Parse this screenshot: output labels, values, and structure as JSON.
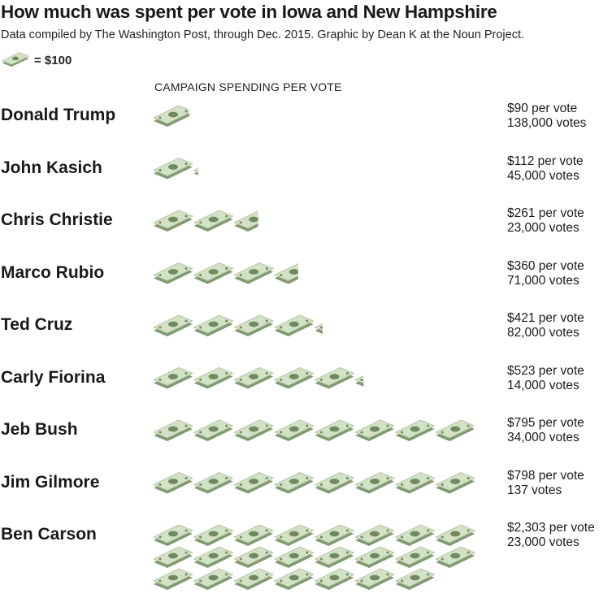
{
  "title": "How much was spent per vote in Iowa and New Hampshire",
  "subtitle": "Data compiled by The Washington Post, through Dec. 2015. Graphic by Dean K at the Noun Project.",
  "legend": {
    "icon": "dollar-bill-icon",
    "text": "= $100"
  },
  "column_header": "CAMPAIGN SPENDING PER VOTE",
  "colors": {
    "bill_body": "#d3e2c6",
    "bill_side": "#7f9a70",
    "bill_outline": "#a9c09a",
    "bill_seal": "#6f8a5e",
    "text": "#1a1a1a"
  },
  "chart_data": {
    "type": "pictogram",
    "title": "How much was spent per vote in Iowa and New Hampshire",
    "unit_value": 100,
    "unit_label": "= $100",
    "xlabel": "CAMPAIGN SPENDING PER VOTE",
    "categories": [
      "Donald Trump",
      "John Kasich",
      "Chris Christie",
      "Marco Rubio",
      "Ted Cruz",
      "Carly Fiorina",
      "Jeb Bush",
      "Jim Gilmore",
      "Ben Carson"
    ],
    "series": [
      {
        "name": "Spending per vote ($)",
        "values": [
          90,
          112,
          261,
          360,
          421,
          523,
          795,
          798,
          2303
        ]
      },
      {
        "name": "Votes",
        "values": [
          138000,
          45000,
          23000,
          71000,
          82000,
          14000,
          34000,
          137,
          23000
        ]
      }
    ],
    "labels": [
      {
        "spend": "$90 per vote",
        "votes": "138,000 votes"
      },
      {
        "spend": "$112 per vote",
        "votes": "45,000 votes"
      },
      {
        "spend": "$261 per vote",
        "votes": "23,000 votes"
      },
      {
        "spend": "$360 per vote",
        "votes": "71,000 votes"
      },
      {
        "spend": "$421 per vote",
        "votes": "82,000 votes"
      },
      {
        "spend": "$523 per vote",
        "votes": "14,000 votes"
      },
      {
        "spend": "$795 per vote",
        "votes": "34,000 votes"
      },
      {
        "spend": "$798 per vote",
        "votes": "137 votes"
      },
      {
        "spend": "$2,303 per vote",
        "votes": "23,000 votes"
      }
    ]
  }
}
